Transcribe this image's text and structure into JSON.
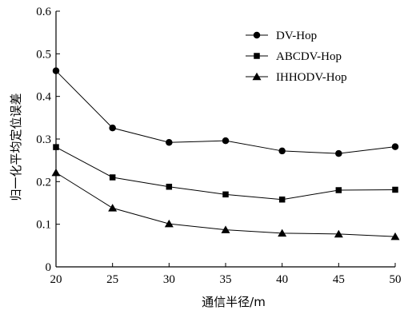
{
  "chart_data": {
    "type": "line",
    "xlabel": "通信半径/m",
    "ylabel": "归一化平均定位误差",
    "x": [
      20,
      25,
      30,
      35,
      40,
      45,
      50
    ],
    "xlim": [
      20,
      50
    ],
    "ylim": [
      0,
      0.6
    ],
    "xticks": [
      "20",
      "25",
      "30",
      "35",
      "40",
      "45",
      "50"
    ],
    "yticks": [
      "0",
      "0.1",
      "0.2",
      "0.3",
      "0.4",
      "0.5",
      "0.6"
    ],
    "grid": false,
    "legend": "top-right",
    "series": [
      {
        "name": "DV-Hop",
        "marker": "circle",
        "values": [
          0.46,
          0.326,
          0.292,
          0.296,
          0.272,
          0.266,
          0.282
        ]
      },
      {
        "name": "ABCDV-Hop",
        "marker": "square",
        "values": [
          0.281,
          0.21,
          0.188,
          0.17,
          0.158,
          0.18,
          0.181
        ]
      },
      {
        "name": "IHHODV-Hop",
        "marker": "triangle",
        "values": [
          0.221,
          0.138,
          0.101,
          0.087,
          0.079,
          0.077,
          0.071
        ]
      }
    ]
  }
}
